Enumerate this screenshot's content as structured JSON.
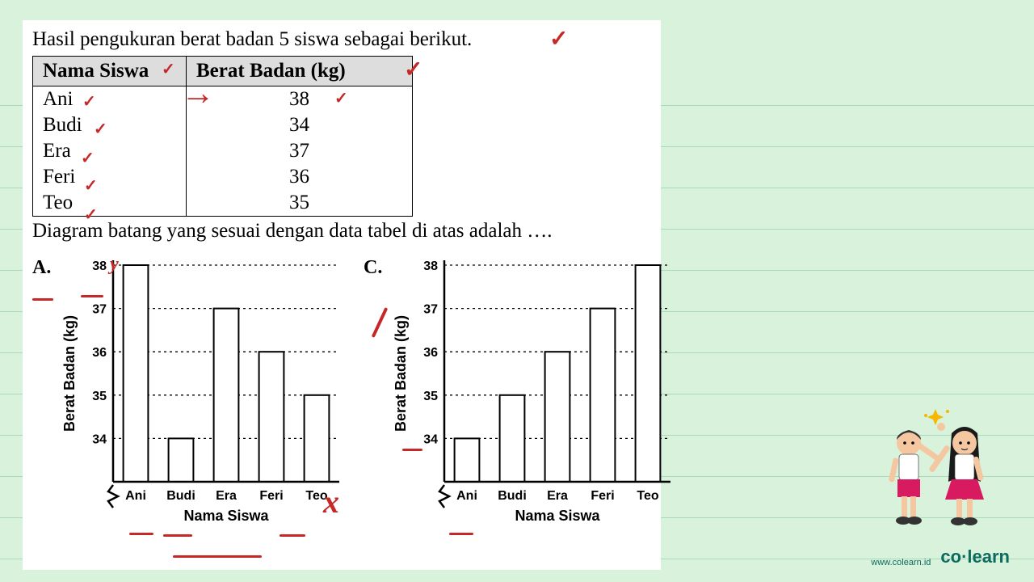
{
  "intro_text": "Hasil pengukuran berat badan 5 siswa sebagai berikut.",
  "question_text": "Diagram batang yang sesuai dengan data tabel di atas adalah ….",
  "table": {
    "headers": {
      "name": "Nama Siswa",
      "weight": "Berat Badan (kg)"
    },
    "rows": [
      {
        "name": "Ani",
        "weight": "38"
      },
      {
        "name": "Budi",
        "weight": "34"
      },
      {
        "name": "Era",
        "weight": "37"
      },
      {
        "name": "Feri",
        "weight": "36"
      },
      {
        "name": "Teo",
        "weight": "35"
      }
    ],
    "header_bg": "#dddddd",
    "border_color": "#000000"
  },
  "charts": {
    "A": {
      "label": "A.",
      "type": "bar",
      "categories": [
        "Ani",
        "Budi",
        "Era",
        "Feri",
        "Teo"
      ],
      "values": [
        38,
        34,
        37,
        36,
        35
      ],
      "bar_colors": [
        "#ffffff",
        "#ffffff",
        "#ffffff",
        "#ffffff",
        "#ffffff"
      ],
      "bar_border": "#000000",
      "ylabel": "Berat Badan (kg)",
      "xlabel": "Nama Siswa",
      "ylim": [
        34,
        38
      ],
      "ytick_step": 1,
      "yticks": [
        34,
        35,
        36,
        37,
        38
      ],
      "grid_style": "dotted",
      "axis_break": true,
      "bar_width": 0.55,
      "label_fontsize": 16,
      "tick_fontsize": 16,
      "title_fontsize": 18
    },
    "C": {
      "label": "C.",
      "type": "bar",
      "categories": [
        "Ani",
        "Budi",
        "Era",
        "Feri",
        "Teo"
      ],
      "values": [
        34,
        35,
        36,
        37,
        38
      ],
      "bar_colors": [
        "#ffffff",
        "#ffffff",
        "#ffffff",
        "#ffffff",
        "#ffffff"
      ],
      "bar_border": "#000000",
      "ylabel": "Berat Badan (kg)",
      "xlabel": "Nama Siswa",
      "ylim": [
        34,
        38
      ],
      "ytick_step": 1,
      "yticks": [
        34,
        35,
        36,
        37,
        38
      ],
      "grid_style": "dotted",
      "axis_break": true,
      "bar_width": 0.55,
      "label_fontsize": 16,
      "tick_fontsize": 16,
      "title_fontsize": 18
    }
  },
  "annotations": {
    "color": "#c62828",
    "check": "✓",
    "x_mark": "x",
    "arrow": "→",
    "y_letter": "y"
  },
  "branding": {
    "url": "www.colearn.id",
    "logo_pre": "co",
    "logo_dot": "·",
    "logo_post": "learn",
    "color": "#0b6b5f"
  },
  "colors": {
    "page_bg": "#d9f2dc",
    "panel_bg": "#ffffff",
    "text": "#000000",
    "rule_line": "rgba(100,180,140,0.4)"
  },
  "mascots": {
    "shirt": "#ffffff",
    "skirt": "#d81b60",
    "skin": "#f4c7a1",
    "shoe": "#333333",
    "hair_boy": "#333333",
    "hair_girl": "#1a1a1a",
    "spark": "#f5b700"
  }
}
